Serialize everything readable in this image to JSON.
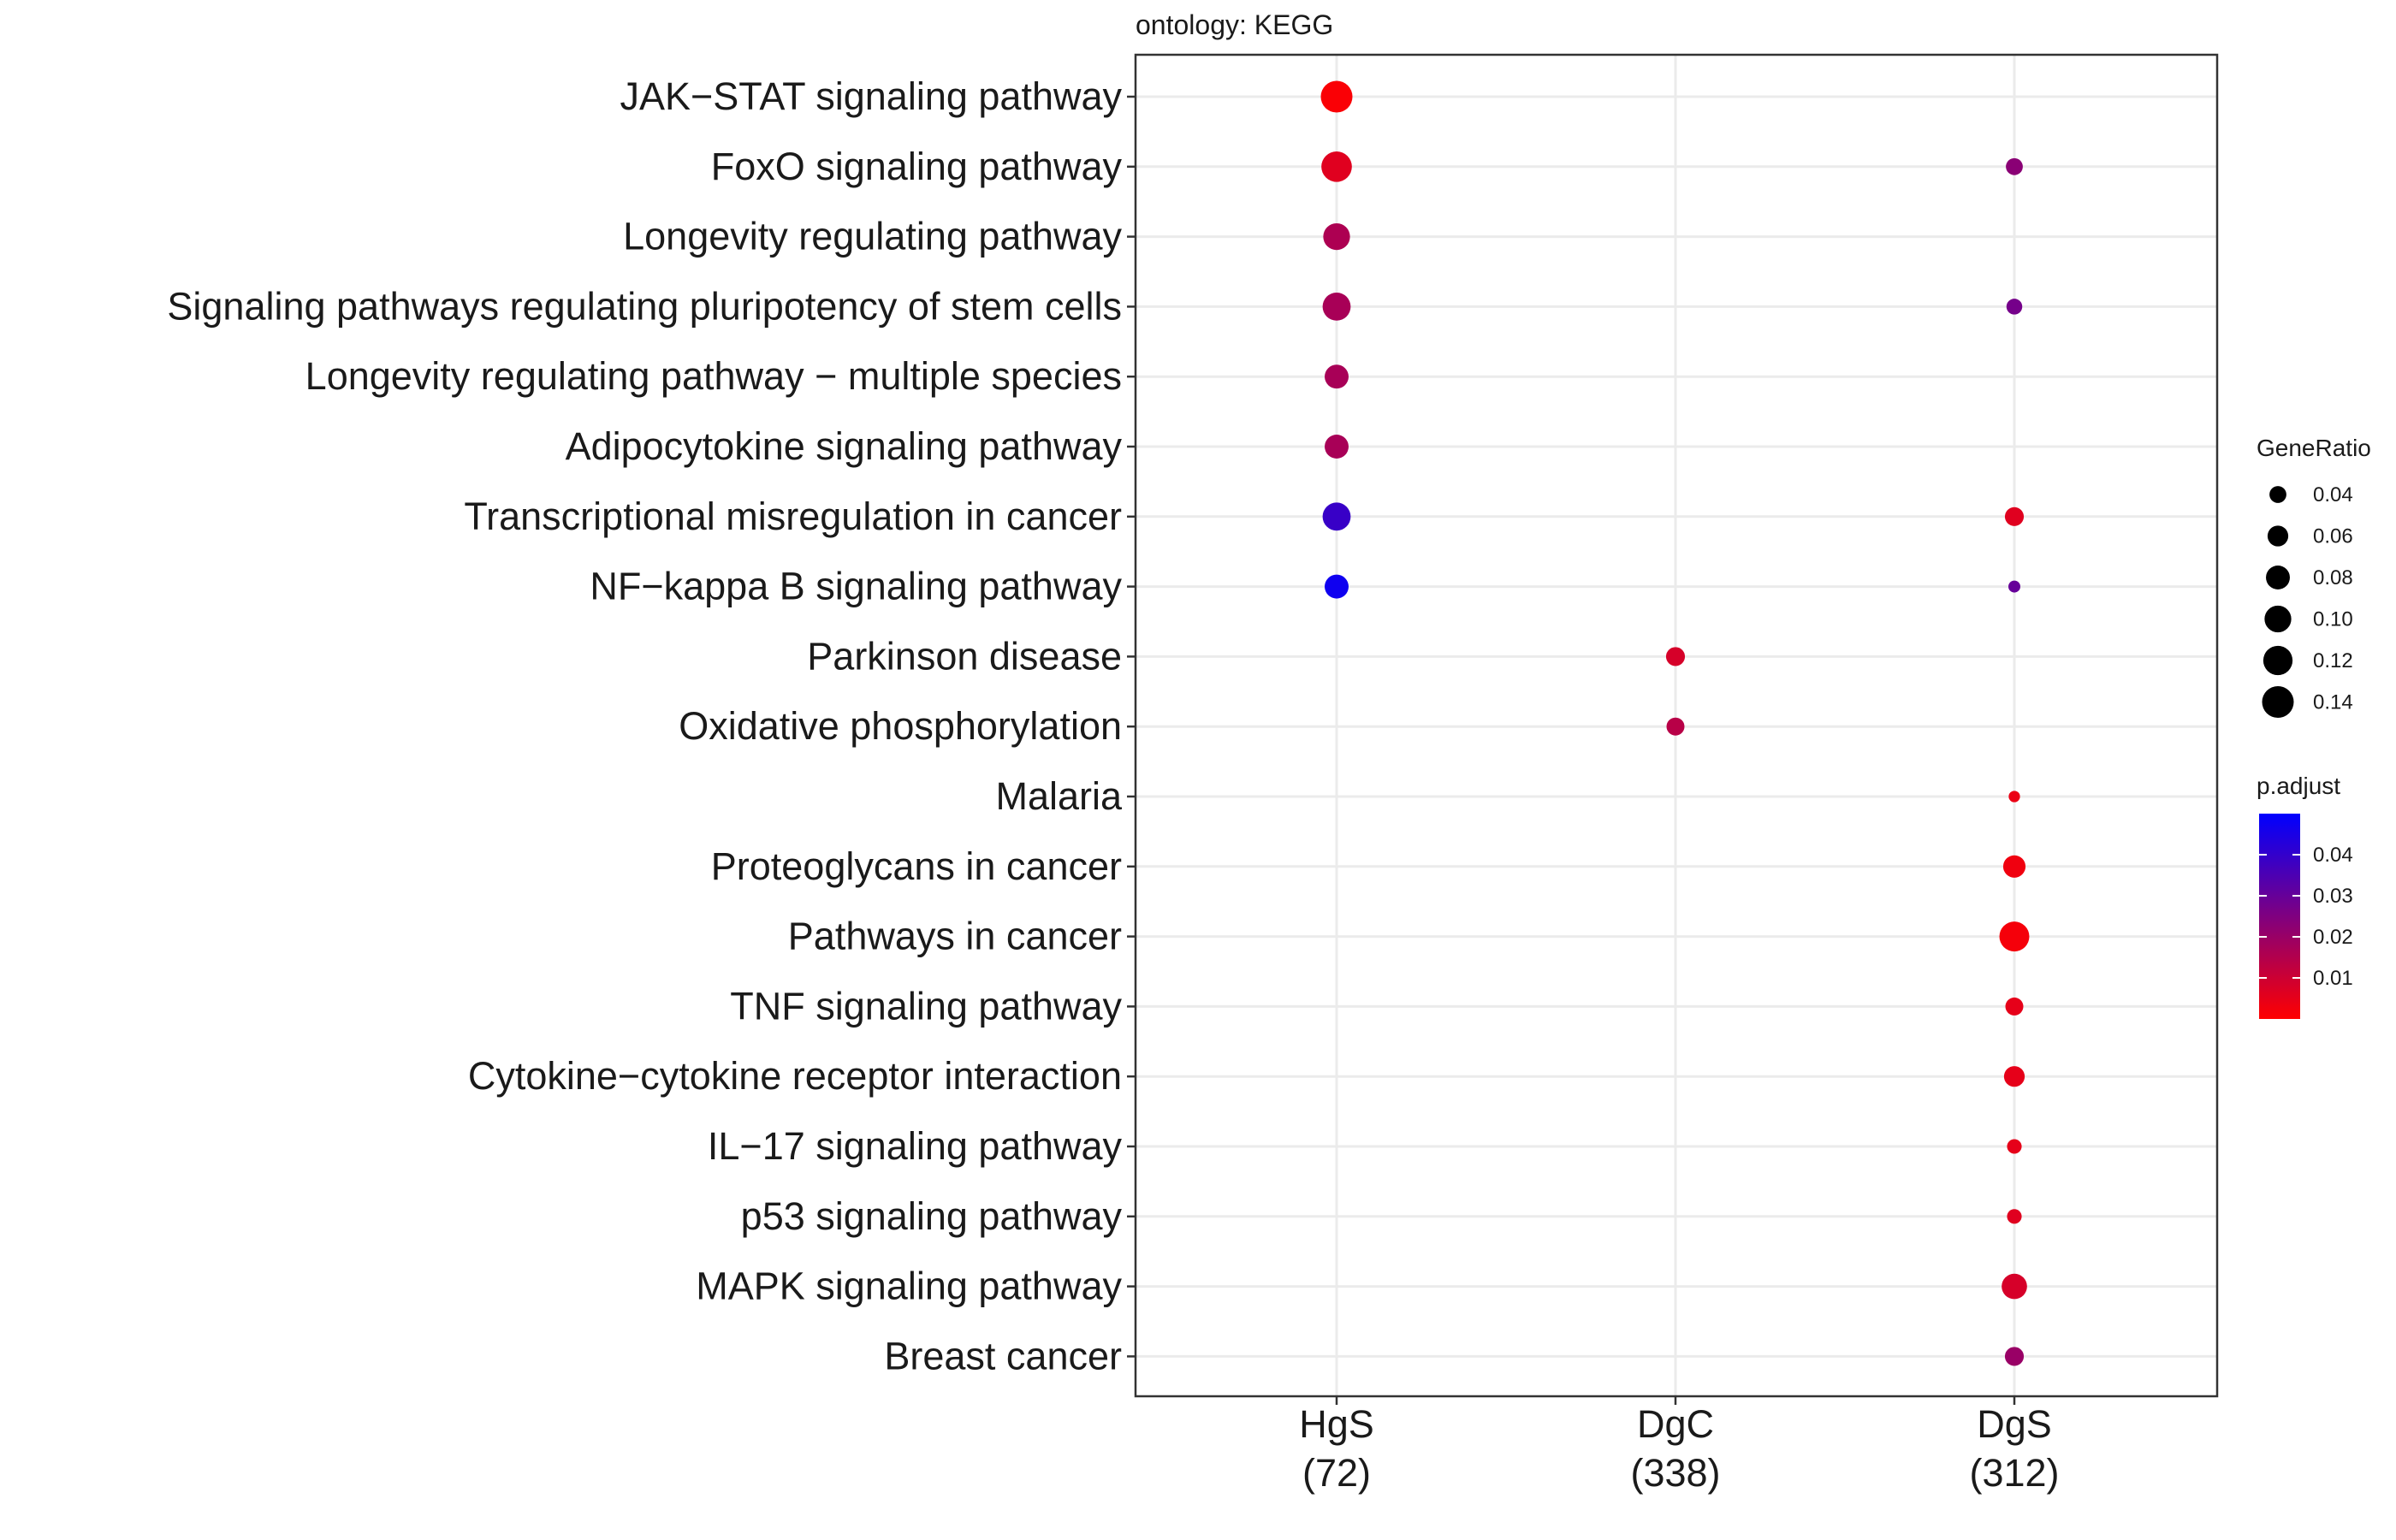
{
  "chart_data": {
    "type": "scatter",
    "title": "ontology: KEGG",
    "x_categories": [
      {
        "name": "HgS",
        "count": "(72)"
      },
      {
        "name": "DgC",
        "count": "(338)"
      },
      {
        "name": "DgS",
        "count": "(312)"
      }
    ],
    "y_categories": [
      "JAK−STAT signaling pathway",
      "FoxO signaling pathway",
      "Longevity regulating pathway",
      "Signaling pathways regulating pluripotency of stem cells",
      "Longevity regulating pathway − multiple species",
      "Adipocytokine signaling pathway",
      "Transcriptional misregulation in cancer",
      "NF−kappa B signaling pathway",
      "Parkinson disease",
      "Oxidative phosphorylation",
      "Malaria",
      "Proteoglycans in cancer",
      "Pathways in cancer",
      "TNF signaling pathway",
      "Cytokine−cytokine receptor interaction",
      "IL−17 signaling pathway",
      "p53 signaling pathway",
      "MAPK signaling pathway",
      "Breast cancer"
    ],
    "points": [
      {
        "x": "HgS",
        "y": "JAK−STAT signaling pathway",
        "gene_ratio": 0.14,
        "p_adjust": 0.001
      },
      {
        "x": "HgS",
        "y": "FoxO signaling pathway",
        "gene_ratio": 0.13,
        "p_adjust": 0.006
      },
      {
        "x": "HgS",
        "y": "Longevity regulating pathway",
        "gene_ratio": 0.1,
        "p_adjust": 0.016
      },
      {
        "x": "HgS",
        "y": "Signaling pathways regulating pluripotency of stem cells",
        "gene_ratio": 0.11,
        "p_adjust": 0.017
      },
      {
        "x": "HgS",
        "y": "Longevity regulating pathway − multiple species",
        "gene_ratio": 0.08,
        "p_adjust": 0.017
      },
      {
        "x": "HgS",
        "y": "Adipocytokine signaling pathway",
        "gene_ratio": 0.08,
        "p_adjust": 0.017
      },
      {
        "x": "HgS",
        "y": "Transcriptional misregulation in cancer",
        "gene_ratio": 0.11,
        "p_adjust": 0.039
      },
      {
        "x": "HgS",
        "y": "NF−kappa B signaling pathway",
        "gene_ratio": 0.08,
        "p_adjust": 0.047
      },
      {
        "x": "DgS",
        "y": "FoxO signaling pathway",
        "gene_ratio": 0.04,
        "p_adjust": 0.023
      },
      {
        "x": "DgS",
        "y": "Signaling pathways regulating pluripotency of stem cells",
        "gene_ratio": 0.035,
        "p_adjust": 0.027
      },
      {
        "x": "DgS",
        "y": "Transcriptional misregulation in cancer",
        "gene_ratio": 0.05,
        "p_adjust": 0.006
      },
      {
        "x": "DgS",
        "y": "NF−kappa B signaling pathway",
        "gene_ratio": 0.02,
        "p_adjust": 0.03
      },
      {
        "x": "DgC",
        "y": "Parkinson disease",
        "gene_ratio": 0.05,
        "p_adjust": 0.008
      },
      {
        "x": "DgC",
        "y": "Oxidative phosphorylation",
        "gene_ratio": 0.045,
        "p_adjust": 0.014
      },
      {
        "x": "DgS",
        "y": "Malaria",
        "gene_ratio": 0.018,
        "p_adjust": 0.004
      },
      {
        "x": "DgS",
        "y": "Proteoglycans in cancer",
        "gene_ratio": 0.07,
        "p_adjust": 0.003
      },
      {
        "x": "DgS",
        "y": "Pathways in cancer",
        "gene_ratio": 0.125,
        "p_adjust": 0.002
      },
      {
        "x": "DgS",
        "y": "TNF signaling pathway",
        "gene_ratio": 0.045,
        "p_adjust": 0.005
      },
      {
        "x": "DgS",
        "y": "Cytokine−cytokine receptor interaction",
        "gene_ratio": 0.06,
        "p_adjust": 0.005
      },
      {
        "x": "DgS",
        "y": "IL−17 signaling pathway",
        "gene_ratio": 0.03,
        "p_adjust": 0.005
      },
      {
        "x": "DgS",
        "y": "p53 signaling pathway",
        "gene_ratio": 0.03,
        "p_adjust": 0.006
      },
      {
        "x": "DgS",
        "y": "MAPK signaling pathway",
        "gene_ratio": 0.09,
        "p_adjust": 0.008
      },
      {
        "x": "DgS",
        "y": "Breast cancer",
        "gene_ratio": 0.05,
        "p_adjust": 0.02
      }
    ],
    "size_legend": {
      "title": "GeneRatio",
      "values": [
        0.04,
        0.06,
        0.08,
        0.1,
        0.12,
        0.14
      ],
      "labels": [
        "0.04",
        "0.06",
        "0.08",
        "0.10",
        "0.12",
        "0.14"
      ]
    },
    "color_legend": {
      "title": "p.adjust",
      "range": [
        0.0,
        0.05
      ],
      "ticks": [
        0.01,
        0.02,
        0.03,
        0.04
      ],
      "tick_labels": [
        "0.01",
        "0.02",
        "0.03",
        "0.04"
      ],
      "low_color": "#ff0000",
      "high_color": "#0000ff"
    },
    "legend_position": "right",
    "grid": true
  }
}
